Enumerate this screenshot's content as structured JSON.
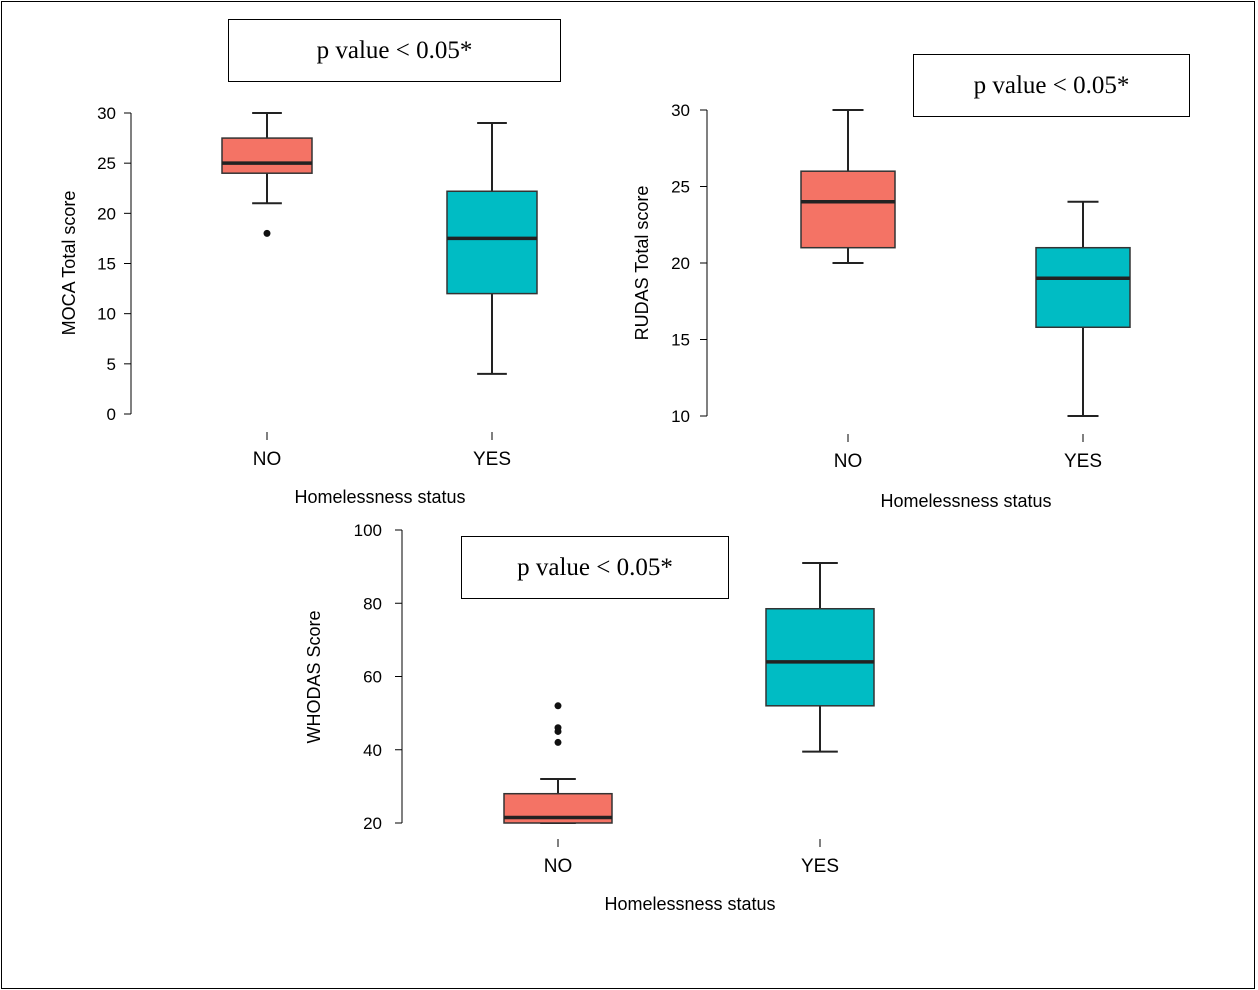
{
  "chart_data": [
    {
      "type": "box",
      "xlabel": "Homelessness status",
      "ylabel": "MOCA Total score",
      "ylim": [
        0,
        30
      ],
      "yticks": [
        0,
        5,
        10,
        15,
        20,
        25,
        30
      ],
      "annotation": "p value < 0.05*",
      "categories": [
        "NO",
        "YES"
      ],
      "boxes": [
        {
          "category": "NO",
          "min": 21,
          "q1": 24,
          "median": 25,
          "q3": 27.5,
          "max": 30,
          "outliers": [
            18
          ],
          "color": "#f47365"
        },
        {
          "category": "YES",
          "min": 4,
          "q1": 12,
          "median": 17.5,
          "q3": 22.2,
          "max": 29,
          "outliers": [],
          "color": "#00bcc4"
        }
      ]
    },
    {
      "type": "box",
      "xlabel": "Homelessness status",
      "ylabel": "RUDAS Total score",
      "ylim": [
        10,
        30
      ],
      "yticks": [
        10,
        15,
        20,
        25,
        30
      ],
      "annotation": "p value < 0.05*",
      "categories": [
        "NO",
        "YES"
      ],
      "boxes": [
        {
          "category": "NO",
          "min": 20,
          "q1": 21,
          "median": 24,
          "q3": 26,
          "max": 30,
          "outliers": [],
          "color": "#f47365"
        },
        {
          "category": "YES",
          "min": 10,
          "q1": 15.8,
          "median": 19,
          "q3": 21,
          "max": 24,
          "outliers": [],
          "color": "#00bcc4"
        }
      ]
    },
    {
      "type": "box",
      "xlabel": "Homelessness status",
      "ylabel": "WHODAS Score",
      "ylim": [
        20,
        100
      ],
      "yticks": [
        20,
        40,
        60,
        80,
        100
      ],
      "annotation": "p value < 0.05*",
      "categories": [
        "NO",
        "YES"
      ],
      "boxes": [
        {
          "category": "NO",
          "min": 20,
          "q1": 20,
          "median": 21.5,
          "q3": 28,
          "max": 32,
          "outliers": [
            42,
            45,
            46,
            52
          ],
          "color": "#f47365"
        },
        {
          "category": "YES",
          "min": 39.5,
          "q1": 52,
          "median": 64,
          "q3": 78.5,
          "max": 91,
          "outliers": [],
          "color": "#00bcc4"
        }
      ]
    }
  ]
}
